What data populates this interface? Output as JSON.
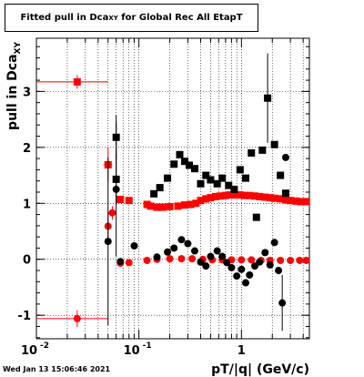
{
  "chart_data": {
    "type": "scatter",
    "title_prefix": "Fitted pull in Dca",
    "title_sub": "XY",
    "title_suffix": " for Global Rec All EtapT",
    "xlabel": "pT/|q| (GeV/c)",
    "ylabel_main": "pull in Dca",
    "ylabel_sub": "XY",
    "x_scale": "log",
    "xlim": [
      0.01,
      4.6
    ],
    "ylim": [
      -1.42,
      3.95
    ],
    "x_ticks": [
      {
        "value": 0.01,
        "base": "10",
        "exp": "-2"
      },
      {
        "value": 0.1,
        "base": "10",
        "exp": "-1"
      },
      {
        "value": 1,
        "base": "1",
        "exp": ""
      }
    ],
    "y_ticks": [
      -1,
      0,
      1,
      2,
      3
    ],
    "grid": true,
    "colors": {
      "red": "#ff0000",
      "black": "#000000"
    },
    "series": [
      {
        "color": "#ff0000",
        "marker": "square",
        "points": [
          {
            "x": 0.025,
            "y": 3.17,
            "xerr": [
              0.015,
              0.025
            ],
            "yerr": 0.12
          },
          {
            "x": 0.05,
            "y": 1.69,
            "xerr": [
              0.005,
              0.005
            ],
            "yerr": 0.3
          },
          {
            "x": 0.066,
            "y": 1.07
          },
          {
            "x": 0.08,
            "y": 1.05
          },
          {
            "x": 0.12,
            "y": 0.98
          },
          {
            "x": 0.13,
            "y": 0.95
          },
          {
            "x": 0.15,
            "y": 0.93
          },
          {
            "x": 0.17,
            "y": 0.93
          },
          {
            "x": 0.2,
            "y": 0.94
          },
          {
            "x": 0.24,
            "y": 0.95
          },
          {
            "x": 0.28,
            "y": 0.97
          },
          {
            "x": 0.32,
            "y": 0.98
          },
          {
            "x": 0.36,
            "y": 1.0
          },
          {
            "x": 0.4,
            "y": 1.05
          },
          {
            "x": 0.45,
            "y": 1.08
          },
          {
            "x": 0.5,
            "y": 1.1
          },
          {
            "x": 0.56,
            "y": 1.12
          },
          {
            "x": 0.62,
            "y": 1.13
          },
          {
            "x": 0.7,
            "y": 1.14
          },
          {
            "x": 0.78,
            "y": 1.15
          },
          {
            "x": 0.87,
            "y": 1.15
          },
          {
            "x": 0.97,
            "y": 1.15
          },
          {
            "x": 1.08,
            "y": 1.14
          },
          {
            "x": 1.2,
            "y": 1.14
          },
          {
            "x": 1.35,
            "y": 1.13
          },
          {
            "x": 1.5,
            "y": 1.12
          },
          {
            "x": 1.7,
            "y": 1.11
          },
          {
            "x": 1.9,
            "y": 1.1
          },
          {
            "x": 2.1,
            "y": 1.09
          },
          {
            "x": 2.4,
            "y": 1.08
          },
          {
            "x": 2.7,
            "y": 1.06
          },
          {
            "x": 3.0,
            "y": 1.05
          },
          {
            "x": 3.4,
            "y": 1.04
          },
          {
            "x": 3.8,
            "y": 1.03
          },
          {
            "x": 4.3,
            "y": 1.03
          }
        ]
      },
      {
        "color": "#ff0000",
        "marker": "circle",
        "points": [
          {
            "x": 0.025,
            "y": -1.06,
            "xerr": [
              0.015,
              0.025
            ],
            "yerr": 0.15
          },
          {
            "x": 0.05,
            "y": 0.59,
            "xerr": [
              0.003,
              0.003
            ],
            "yerr": 0.25
          },
          {
            "x": 0.055,
            "y": 0.83,
            "yerr": 0.12
          },
          {
            "x": 0.066,
            "y": -0.07
          },
          {
            "x": 0.08,
            "y": -0.06
          },
          {
            "x": 0.12,
            "y": -0.02
          },
          {
            "x": 0.15,
            "y": 0.0
          },
          {
            "x": 0.2,
            "y": 0.01
          },
          {
            "x": 0.26,
            "y": 0.01
          },
          {
            "x": 0.33,
            "y": 0.01
          },
          {
            "x": 0.42,
            "y": 0.0
          },
          {
            "x": 0.52,
            "y": -0.01
          },
          {
            "x": 0.65,
            "y": -0.01
          },
          {
            "x": 0.8,
            "y": -0.01
          },
          {
            "x": 1.0,
            "y": -0.01
          },
          {
            "x": 1.25,
            "y": -0.01
          },
          {
            "x": 1.55,
            "y": -0.02
          },
          {
            "x": 1.9,
            "y": -0.02
          },
          {
            "x": 2.4,
            "y": -0.02
          },
          {
            "x": 3.0,
            "y": -0.02
          },
          {
            "x": 3.7,
            "y": -0.02
          },
          {
            "x": 4.3,
            "y": -0.02
          }
        ]
      },
      {
        "color": "#000000",
        "marker": "square",
        "points": [
          {
            "x": 0.06,
            "y": 2.18,
            "yerr": 0.4
          },
          {
            "x": 0.06,
            "y": 1.43,
            "yerr": 0.45
          },
          {
            "x": 0.14,
            "y": 1.17
          },
          {
            "x": 0.16,
            "y": 1.28
          },
          {
            "x": 0.19,
            "y": 1.45
          },
          {
            "x": 0.22,
            "y": 1.7
          },
          {
            "x": 0.25,
            "y": 1.87
          },
          {
            "x": 0.28,
            "y": 1.75
          },
          {
            "x": 0.31,
            "y": 1.68
          },
          {
            "x": 0.35,
            "y": 1.62
          },
          {
            "x": 0.4,
            "y": 1.35
          },
          {
            "x": 0.45,
            "y": 1.5
          },
          {
            "x": 0.5,
            "y": 1.42
          },
          {
            "x": 0.58,
            "y": 1.35
          },
          {
            "x": 0.65,
            "y": 1.45
          },
          {
            "x": 0.75,
            "y": 1.32
          },
          {
            "x": 0.85,
            "y": 1.25
          },
          {
            "x": 0.97,
            "y": 1.6
          },
          {
            "x": 1.1,
            "y": 1.45
          },
          {
            "x": 1.25,
            "y": 1.9
          },
          {
            "x": 1.4,
            "y": 0.75
          },
          {
            "x": 1.6,
            "y": 1.95
          },
          {
            "x": 1.8,
            "y": 2.88,
            "yerr": 0.8
          },
          {
            "x": 2.1,
            "y": 2.05
          },
          {
            "x": 2.4,
            "y": 1.5
          },
          {
            "x": 2.7,
            "y": 1.18
          }
        ]
      },
      {
        "color": "#000000",
        "marker": "circle",
        "points": [
          {
            "x": 0.05,
            "y": 0.32,
            "yerr": 1.5
          },
          {
            "x": 0.06,
            "y": 1.25,
            "yerr": 1.2
          },
          {
            "x": 0.066,
            "y": -0.04
          },
          {
            "x": 0.09,
            "y": 0.24
          },
          {
            "x": 0.15,
            "y": 0.04
          },
          {
            "x": 0.19,
            "y": 0.13
          },
          {
            "x": 0.22,
            "y": 0.2
          },
          {
            "x": 0.26,
            "y": 0.35
          },
          {
            "x": 0.3,
            "y": 0.28
          },
          {
            "x": 0.35,
            "y": 0.15
          },
          {
            "x": 0.4,
            "y": -0.05
          },
          {
            "x": 0.45,
            "y": -0.12
          },
          {
            "x": 0.5,
            "y": 0.05
          },
          {
            "x": 0.58,
            "y": 0.15
          },
          {
            "x": 0.65,
            "y": 0.05
          },
          {
            "x": 0.72,
            "y": -0.06
          },
          {
            "x": 0.8,
            "y": -0.15
          },
          {
            "x": 0.9,
            "y": -0.3
          },
          {
            "x": 1.0,
            "y": -0.18
          },
          {
            "x": 1.1,
            "y": -0.42
          },
          {
            "x": 1.2,
            "y": -0.28
          },
          {
            "x": 1.35,
            "y": -0.12
          },
          {
            "x": 1.5,
            "y": -0.05
          },
          {
            "x": 1.7,
            "y": 0.12
          },
          {
            "x": 1.9,
            "y": -0.1
          },
          {
            "x": 2.1,
            "y": 0.3
          },
          {
            "x": 2.3,
            "y": -0.2
          },
          {
            "x": 2.5,
            "y": -0.78,
            "yerr": 0.5
          },
          {
            "x": 2.7,
            "y": 1.82
          }
        ]
      }
    ]
  },
  "footer": {
    "timestamp": "Wed Jan 13 15:06:46 2021"
  }
}
